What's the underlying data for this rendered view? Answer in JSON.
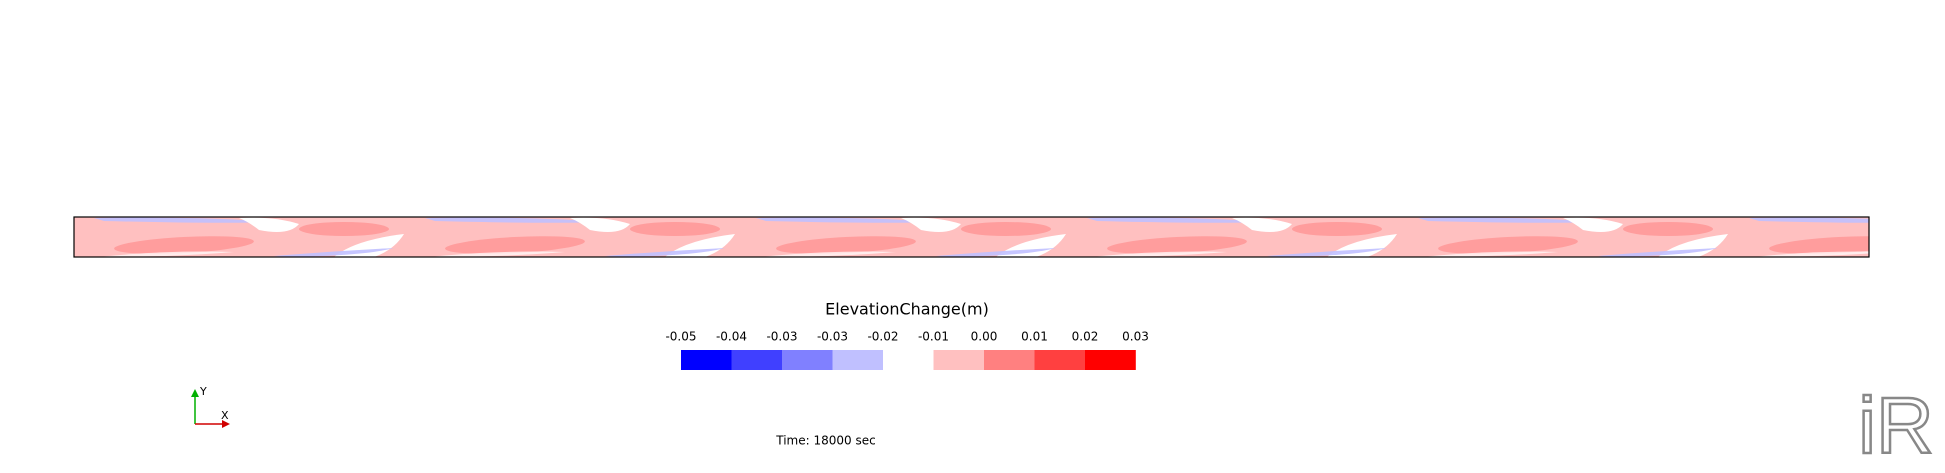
{
  "colorbar": {
    "title": "ElevationChange(m)",
    "labels": [
      "-0.05",
      "-0.04",
      "-0.03",
      "-0.03",
      "-0.02",
      "-0.01",
      "0.00",
      "0.01",
      "0.02",
      "0.03"
    ],
    "colors": [
      "#0000ff",
      "#4040ff",
      "#8080ff",
      "#c0c0ff",
      "#ffffff",
      "#ffc0c0",
      "#ff8080",
      "#ff4040",
      "#ff0000"
    ]
  },
  "axes": {
    "x": "X",
    "y": "Y"
  },
  "time": "Time: 18000 sec",
  "logo": "iR"
}
